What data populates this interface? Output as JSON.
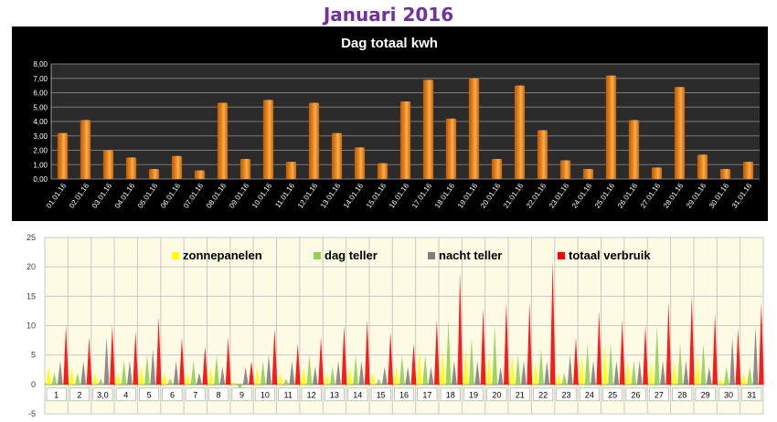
{
  "page": {
    "title": "Januari 2016"
  },
  "chart_data": [
    {
      "type": "bar",
      "title": "Dag totaal kwh",
      "xlabel": "",
      "ylabel": "",
      "ylim": [
        0,
        8
      ],
      "yticks": [
        "0,00",
        "1,00",
        "2,00",
        "3,00",
        "4,00",
        "5,00",
        "6,00",
        "7,00",
        "8,00"
      ],
      "grid": true,
      "colors": {
        "bar": "#f28c1e",
        "background": "#000000",
        "plot": "#2b2b2b"
      },
      "categories": [
        "01.01.16",
        "02.01.16",
        "03.01.16",
        "04.01.16",
        "05.01.16",
        "06.01.16",
        "07.01.16",
        "08.01.16",
        "09.01.16",
        "10.01.16",
        "11.01.16",
        "12.01.16",
        "13.01.16",
        "14.01.16",
        "15.01.16",
        "16.01.16",
        "17.01.16",
        "18.01.16",
        "19.01.16",
        "20.01.16",
        "21.01.16",
        "22.01.16",
        "23.01.16",
        "24.01.16",
        "25.01.16",
        "26.01.16",
        "27.01.16",
        "28.01.16",
        "29.01.16",
        "30.01.16",
        "31.01.16"
      ],
      "values": [
        3.2,
        4.1,
        2.0,
        1.5,
        0.7,
        1.6,
        0.6,
        5.3,
        1.4,
        5.5,
        1.2,
        5.3,
        3.2,
        2.2,
        1.1,
        5.4,
        6.9,
        4.2,
        7.0,
        1.4,
        6.5,
        3.4,
        1.3,
        0.7,
        7.2,
        4.1,
        0.8,
        6.4,
        1.7,
        0.7,
        1.2
      ]
    },
    {
      "type": "area",
      "title": "",
      "xlabel": "",
      "ylabel": "",
      "ylim": [
        -5,
        25
      ],
      "yticks": [
        "-5",
        "0",
        "5",
        "10",
        "15",
        "20",
        "25"
      ],
      "grid": true,
      "legend": "top",
      "categories": [
        "1",
        "2",
        "3,0",
        "4",
        "5",
        "6",
        "7",
        "8",
        "9",
        "10",
        "11",
        "12",
        "13",
        "14",
        "15",
        "16",
        "17",
        "18",
        "19",
        "20",
        "21",
        "22",
        "23",
        "24",
        "25",
        "26",
        "27",
        "28",
        "29",
        "30",
        "31"
      ],
      "series": [
        {
          "name": "zonnepanelen",
          "color": "#ffff00",
          "values": [
            3,
            3,
            2,
            2,
            3,
            2,
            2,
            3,
            0.5,
            3,
            2,
            3,
            2,
            3,
            2,
            3,
            6,
            6,
            6,
            5,
            5,
            4,
            2,
            5,
            7,
            4,
            4,
            4,
            5,
            1,
            2
          ]
        },
        {
          "name": "dag teller",
          "color": "#92d050",
          "values": [
            2,
            2,
            1,
            4,
            5,
            1,
            4,
            5,
            -1,
            4,
            1,
            5,
            3,
            5,
            1,
            5,
            5,
            11,
            8,
            10,
            5,
            6,
            2,
            7,
            7,
            4,
            10,
            7,
            7,
            3,
            3
          ]
        },
        {
          "name": "nacht teller",
          "color": "#7f7f7f",
          "values": [
            4,
            4,
            8,
            4,
            6,
            4,
            2,
            3,
            3,
            5,
            4,
            3,
            4,
            4,
            3,
            3,
            3,
            4,
            4,
            3,
            4,
            4,
            5,
            4,
            4,
            4,
            4,
            4,
            3,
            8,
            10
          ]
        },
        {
          "name": "totaal verbruik",
          "color": "#ff0000",
          "values": [
            10,
            8,
            10,
            9,
            11.5,
            8,
            6.5,
            8,
            4,
            9.5,
            7,
            8,
            10,
            11,
            9,
            7,
            11,
            19,
            13,
            14,
            14,
            21,
            8,
            12.5,
            11,
            10,
            14,
            15,
            12,
            9.5,
            14
          ]
        }
      ]
    }
  ]
}
